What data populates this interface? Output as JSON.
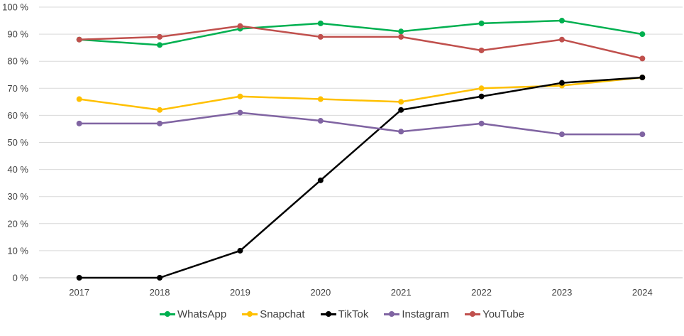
{
  "chart_data": {
    "type": "line",
    "categories": [
      "2017",
      "2018",
      "2019",
      "2020",
      "2021",
      "2022",
      "2023",
      "2024"
    ],
    "y_tick_labels": [
      "0 %",
      "10 %",
      "20 %",
      "30 %",
      "40 %",
      "50 %",
      "60 %",
      "70 %",
      "80 %",
      "90 %",
      "100 %"
    ],
    "ylim": [
      0,
      100
    ],
    "grid": true,
    "legend_position": "bottom",
    "series": [
      {
        "name": "WhatsApp",
        "color": "#00b050",
        "values": [
          88,
          86,
          92,
          94,
          91,
          94,
          95,
          90
        ]
      },
      {
        "name": "Snapchat",
        "color": "#ffc000",
        "values": [
          66,
          62,
          67,
          66,
          65,
          70,
          71,
          74
        ]
      },
      {
        "name": "TikTok",
        "color": "#000000",
        "values": [
          0,
          0,
          10,
          36,
          62,
          67,
          72,
          74
        ]
      },
      {
        "name": "Instagram",
        "color": "#8064a2",
        "values": [
          57,
          57,
          61,
          58,
          54,
          57,
          53,
          53
        ]
      },
      {
        "name": "YouTube",
        "color": "#c0504d",
        "values": [
          88,
          89,
          93,
          89,
          89,
          84,
          88,
          81
        ]
      }
    ]
  }
}
